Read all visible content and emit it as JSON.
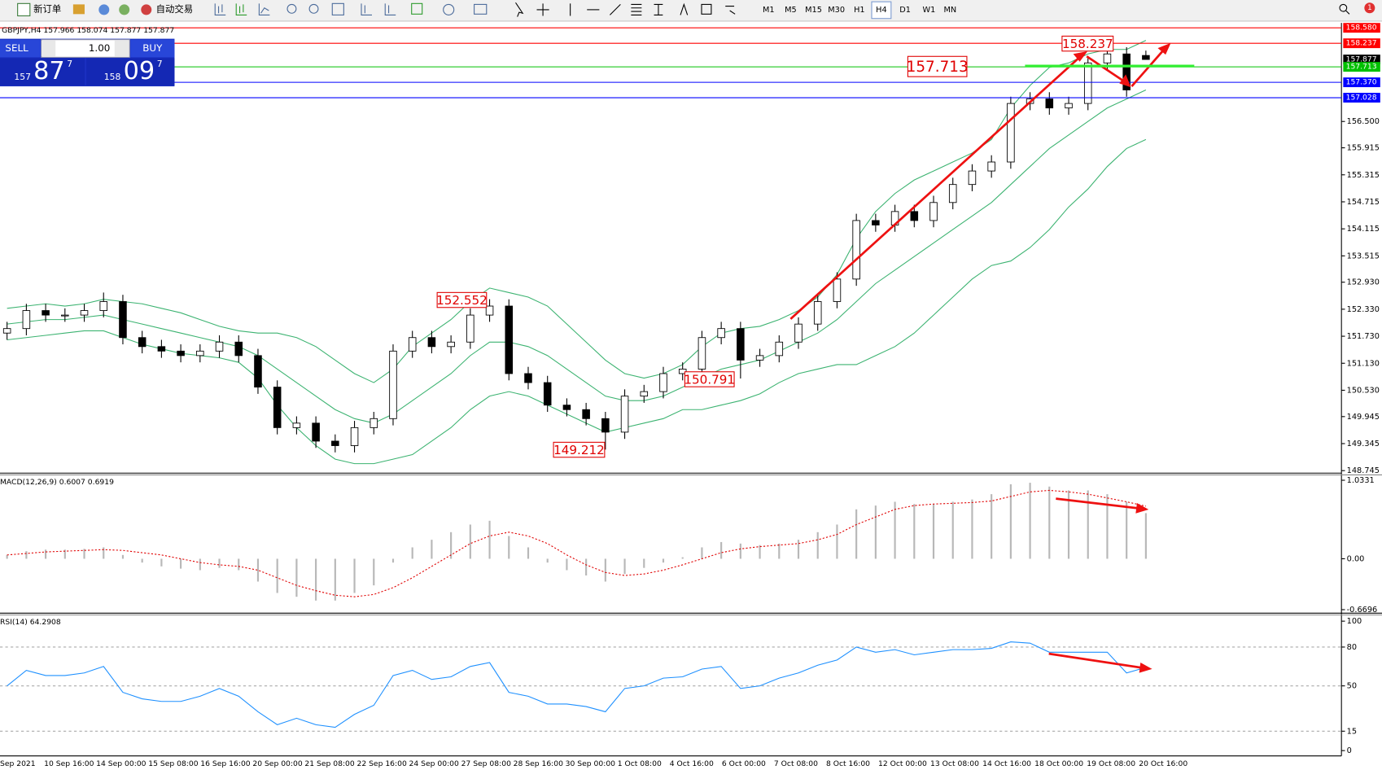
{
  "toolbar": {
    "new_order": "新订单",
    "auto_trading": "自动交易",
    "timeframes": [
      "M1",
      "M5",
      "M15",
      "M30",
      "H1",
      "H4",
      "D1",
      "W1",
      "MN"
    ],
    "active_timeframe": "H4",
    "badge": "1"
  },
  "trade_panel": {
    "sell": "SELL",
    "buy": "BUY",
    "lots": "1.00",
    "bid": {
      "big": "157",
      "main": "87",
      "small": "7"
    },
    "ask": {
      "big": "158",
      "main": "09",
      "small": "7"
    }
  },
  "chart_data": [
    {
      "type": "candlestick",
      "symbol": "GBPJPY,H4",
      "candles": [
        [
          151.8,
          152.05,
          151.65,
          151.9
        ],
        [
          151.9,
          152.45,
          151.75,
          152.3
        ],
        [
          152.3,
          152.45,
          152.05,
          152.2
        ],
        [
          152.2,
          152.35,
          152.05,
          152.2
        ],
        [
          152.2,
          152.45,
          152.05,
          152.3
        ],
        [
          152.3,
          152.7,
          152.15,
          152.5
        ],
        [
          152.5,
          152.65,
          151.55,
          151.7
        ],
        [
          151.7,
          151.85,
          151.35,
          151.5
        ],
        [
          151.5,
          151.65,
          151.25,
          151.4
        ],
        [
          151.4,
          151.55,
          151.15,
          151.3
        ],
        [
          151.3,
          151.55,
          151.15,
          151.4
        ],
        [
          151.4,
          151.75,
          151.25,
          151.6
        ],
        [
          151.6,
          151.75,
          151.15,
          151.3
        ],
        [
          151.3,
          151.45,
          150.45,
          150.6
        ],
        [
          150.6,
          150.75,
          149.55,
          149.7
        ],
        [
          149.7,
          149.95,
          149.55,
          149.8
        ],
        [
          149.8,
          149.95,
          149.25,
          149.4
        ],
        [
          149.4,
          149.55,
          149.15,
          149.3
        ],
        [
          149.3,
          149.85,
          149.15,
          149.7
        ],
        [
          149.7,
          150.05,
          149.55,
          149.9
        ],
        [
          149.9,
          151.55,
          149.75,
          151.4
        ],
        [
          151.4,
          151.85,
          151.25,
          151.7
        ],
        [
          151.7,
          151.85,
          151.35,
          151.5
        ],
        [
          151.5,
          151.75,
          151.35,
          151.6
        ],
        [
          151.6,
          152.35,
          151.45,
          152.2
        ],
        [
          152.2,
          152.552,
          152.05,
          152.4
        ],
        [
          152.4,
          152.55,
          150.75,
          150.9
        ],
        [
          150.9,
          151.05,
          150.55,
          150.7
        ],
        [
          150.7,
          150.85,
          150.05,
          150.2
        ],
        [
          150.2,
          150.35,
          149.95,
          150.1
        ],
        [
          150.1,
          150.25,
          149.75,
          149.9
        ],
        [
          149.9,
          150.05,
          149.212,
          149.6
        ],
        [
          149.6,
          150.55,
          149.45,
          150.4
        ],
        [
          150.4,
          150.65,
          150.25,
          150.5
        ],
        [
          150.5,
          151.05,
          150.35,
          150.9
        ],
        [
          150.9,
          151.15,
          150.75,
          151.0
        ],
        [
          151.0,
          151.85,
          150.85,
          151.7
        ],
        [
          151.7,
          152.05,
          151.55,
          151.9
        ],
        [
          151.9,
          152.05,
          150.791,
          151.2
        ],
        [
          151.2,
          151.45,
          151.05,
          151.3
        ],
        [
          151.3,
          151.75,
          151.15,
          151.6
        ],
        [
          151.6,
          152.15,
          151.45,
          152.0
        ],
        [
          152.0,
          152.65,
          151.85,
          152.5
        ],
        [
          152.5,
          153.15,
          152.35,
          153.0
        ],
        [
          153.0,
          154.45,
          152.85,
          154.3
        ],
        [
          154.3,
          154.45,
          154.05,
          154.2
        ],
        [
          154.2,
          154.65,
          154.05,
          154.5
        ],
        [
          154.5,
          154.65,
          154.15,
          154.3
        ],
        [
          154.3,
          154.85,
          154.15,
          154.7
        ],
        [
          154.7,
          155.25,
          154.55,
          155.1
        ],
        [
          155.1,
          155.55,
          154.95,
          155.4
        ],
        [
          155.4,
          155.75,
          155.25,
          155.6
        ],
        [
          155.6,
          157.05,
          155.45,
          156.9
        ],
        [
          156.9,
          157.15,
          156.75,
          157.0
        ],
        [
          157.0,
          157.15,
          156.65,
          156.8
        ],
        [
          156.8,
          157.05,
          156.65,
          156.9
        ],
        [
          156.9,
          157.95,
          156.75,
          157.8
        ],
        [
          157.8,
          158.237,
          157.65,
          158.0
        ],
        [
          158.0,
          158.15,
          157.05,
          157.2
        ],
        [
          157.966,
          158.074,
          157.877,
          157.877
        ]
      ],
      "bollinger": {
        "color": "#3cb371",
        "upper": [
          152.35,
          152.4,
          152.45,
          152.4,
          152.45,
          152.55,
          152.5,
          152.45,
          152.35,
          152.25,
          152.1,
          151.95,
          151.85,
          151.8,
          151.8,
          151.7,
          151.5,
          151.2,
          150.9,
          150.7,
          151.0,
          151.5,
          151.8,
          152.1,
          152.5,
          152.8,
          152.7,
          152.6,
          152.4,
          152.0,
          151.6,
          151.2,
          150.9,
          150.8,
          150.9,
          151.1,
          151.5,
          151.8,
          151.9,
          151.95,
          152.1,
          152.3,
          152.6,
          153.1,
          153.9,
          154.5,
          154.9,
          155.2,
          155.4,
          155.6,
          155.8,
          156.1,
          156.8,
          157.3,
          157.7,
          157.8,
          158.0,
          158.1,
          158.1,
          158.3
        ],
        "middle": [
          152.0,
          152.05,
          152.1,
          152.1,
          152.15,
          152.2,
          152.1,
          152.0,
          151.9,
          151.8,
          151.7,
          151.6,
          151.5,
          151.3,
          151.0,
          150.7,
          150.4,
          150.1,
          149.9,
          149.8,
          150.0,
          150.3,
          150.6,
          150.9,
          151.3,
          151.6,
          151.6,
          151.5,
          151.3,
          151.0,
          150.7,
          150.4,
          150.3,
          150.3,
          150.4,
          150.6,
          150.8,
          151.0,
          151.1,
          151.2,
          151.4,
          151.6,
          151.8,
          152.1,
          152.5,
          152.9,
          153.2,
          153.5,
          153.8,
          154.1,
          154.4,
          154.7,
          155.1,
          155.5,
          155.9,
          156.2,
          156.5,
          156.8,
          157.0,
          157.2
        ],
        "lower": [
          151.65,
          151.7,
          151.75,
          151.8,
          151.85,
          151.85,
          151.7,
          151.55,
          151.45,
          151.35,
          151.3,
          151.25,
          151.15,
          150.8,
          150.2,
          149.7,
          149.3,
          149.0,
          148.9,
          148.9,
          149.0,
          149.1,
          149.4,
          149.7,
          150.1,
          150.4,
          150.5,
          150.4,
          150.2,
          150.0,
          149.8,
          149.6,
          149.7,
          149.8,
          149.9,
          150.1,
          150.1,
          150.2,
          150.3,
          150.45,
          150.7,
          150.9,
          151.0,
          151.1,
          151.1,
          151.3,
          151.5,
          151.8,
          152.2,
          152.6,
          153.0,
          153.3,
          153.4,
          153.7,
          154.1,
          154.6,
          155.0,
          155.5,
          155.9,
          156.1
        ]
      },
      "ylim": [
        148.69,
        158.65
      ],
      "yticks": [
        {
          "value": 156.5,
          "label": "156.500"
        },
        {
          "value": 155.915,
          "label": "155.915"
        },
        {
          "value": 155.315,
          "label": "155.315"
        },
        {
          "value": 154.715,
          "label": "154.715"
        },
        {
          "value": 154.115,
          "label": "154.115"
        },
        {
          "value": 153.515,
          "label": "153.515"
        },
        {
          "value": 152.93,
          "label": "152.930"
        },
        {
          "value": 152.33,
          "label": "152.330"
        },
        {
          "value": 151.73,
          "label": "151.730"
        },
        {
          "value": 151.13,
          "label": "151.130"
        },
        {
          "value": 150.53,
          "label": "150.530"
        },
        149.945,
        149.345,
        148.745
      ],
      "levels": [
        {
          "value": 158.58,
          "label": "158.580",
          "color": "#ff0000",
          "line": true
        },
        {
          "value": 158.237,
          "label": "158.237",
          "color": "#ff0000",
          "line": true
        },
        {
          "value": 157.877,
          "label": "157.877",
          "color": "#000000",
          "line": false
        },
        {
          "value": 157.713,
          "label": "157.713",
          "color": "#00c000",
          "line": true
        },
        {
          "value": 157.37,
          "label": "157.370",
          "color": "#0000ff",
          "line": true
        },
        {
          "value": 157.028,
          "label": "157.028",
          "color": "#0000ff",
          "line": true
        }
      ],
      "time_labels": [
        "Sep 2021",
        "10 Sep 16:00",
        "14 Sep 00:00",
        "15 Sep 08:00",
        "16 Sep 16:00",
        "20 Sep 00:00",
        "21 Sep 08:00",
        "22 Sep 16:00",
        "24 Sep 00:00",
        "27 Sep 08:00",
        "28 Sep 16:00",
        "30 Sep 00:00",
        "1 Oct 08:00",
        "4 Oct 16:00",
        "6 Oct 00:00",
        "7 Oct 08:00",
        "8 Oct 16:00",
        "12 Oct 00:00",
        "13 Oct 08:00",
        "14 Oct 16:00",
        "18 Oct 00:00",
        "19 Oct 08:00",
        "20 Oct 16:00"
      ]
    },
    {
      "type": "bar",
      "name": "MACD(12,26,9)",
      "color": "#b8b8b8",
      "signal_color": "#e00000",
      "values": [
        0.05,
        0.1,
        0.12,
        0.12,
        0.13,
        0.15,
        0.05,
        -0.05,
        -0.1,
        -0.13,
        -0.15,
        -0.12,
        -0.15,
        -0.3,
        -0.45,
        -0.5,
        -0.55,
        -0.55,
        -0.45,
        -0.35,
        -0.05,
        0.15,
        0.25,
        0.35,
        0.45,
        0.5,
        0.3,
        0.15,
        -0.05,
        -0.15,
        -0.22,
        -0.3,
        -0.2,
        -0.12,
        -0.05,
        0.02,
        0.15,
        0.22,
        0.2,
        0.18,
        0.2,
        0.25,
        0.35,
        0.45,
        0.65,
        0.7,
        0.75,
        0.72,
        0.72,
        0.75,
        0.78,
        0.85,
        0.98,
        1.0,
        0.95,
        0.9,
        0.9,
        0.85,
        0.75,
        0.6007
      ],
      "signal": [
        0.05,
        0.07,
        0.09,
        0.1,
        0.11,
        0.12,
        0.11,
        0.08,
        0.05,
        0.0,
        -0.05,
        -0.08,
        -0.1,
        -0.15,
        -0.25,
        -0.35,
        -0.42,
        -0.48,
        -0.5,
        -0.47,
        -0.38,
        -0.25,
        -0.1,
        0.05,
        0.2,
        0.3,
        0.35,
        0.3,
        0.2,
        0.05,
        -0.08,
        -0.18,
        -0.22,
        -0.2,
        -0.15,
        -0.08,
        0.0,
        0.08,
        0.13,
        0.16,
        0.18,
        0.2,
        0.25,
        0.32,
        0.45,
        0.55,
        0.65,
        0.7,
        0.72,
        0.73,
        0.74,
        0.76,
        0.82,
        0.88,
        0.9,
        0.88,
        0.85,
        0.8,
        0.75,
        0.6919
      ],
      "ylim": [
        -0.716,
        1.104
      ],
      "yticks": [
        {
          "value": 1.0331,
          "label": "1.0331"
        },
        {
          "value": 0,
          "label": "0.00"
        },
        {
          "value": -0.6696,
          "label": "-0.6696"
        }
      ]
    },
    {
      "type": "line",
      "name": "RSI(14)",
      "color": "#1e90ff",
      "values": [
        50,
        62,
        58,
        58,
        60,
        65,
        45,
        40,
        38,
        38,
        42,
        48,
        42,
        30,
        20,
        25,
        20,
        18,
        28,
        35,
        58,
        62,
        55,
        57,
        65,
        68,
        45,
        42,
        36,
        36,
        34,
        30,
        48,
        50,
        56,
        57,
        63,
        65,
        48,
        50,
        56,
        60,
        66,
        70,
        80,
        76,
        78,
        74,
        76,
        78,
        78,
        79,
        84,
        83,
        76,
        76,
        76,
        76,
        60,
        64.2908
      ],
      "ylim": [
        -4.1,
        104.8
      ],
      "yticks": [
        100,
        80,
        50,
        15,
        0
      ],
      "dashed_levels": [
        80,
        50,
        15
      ]
    }
  ]
}
